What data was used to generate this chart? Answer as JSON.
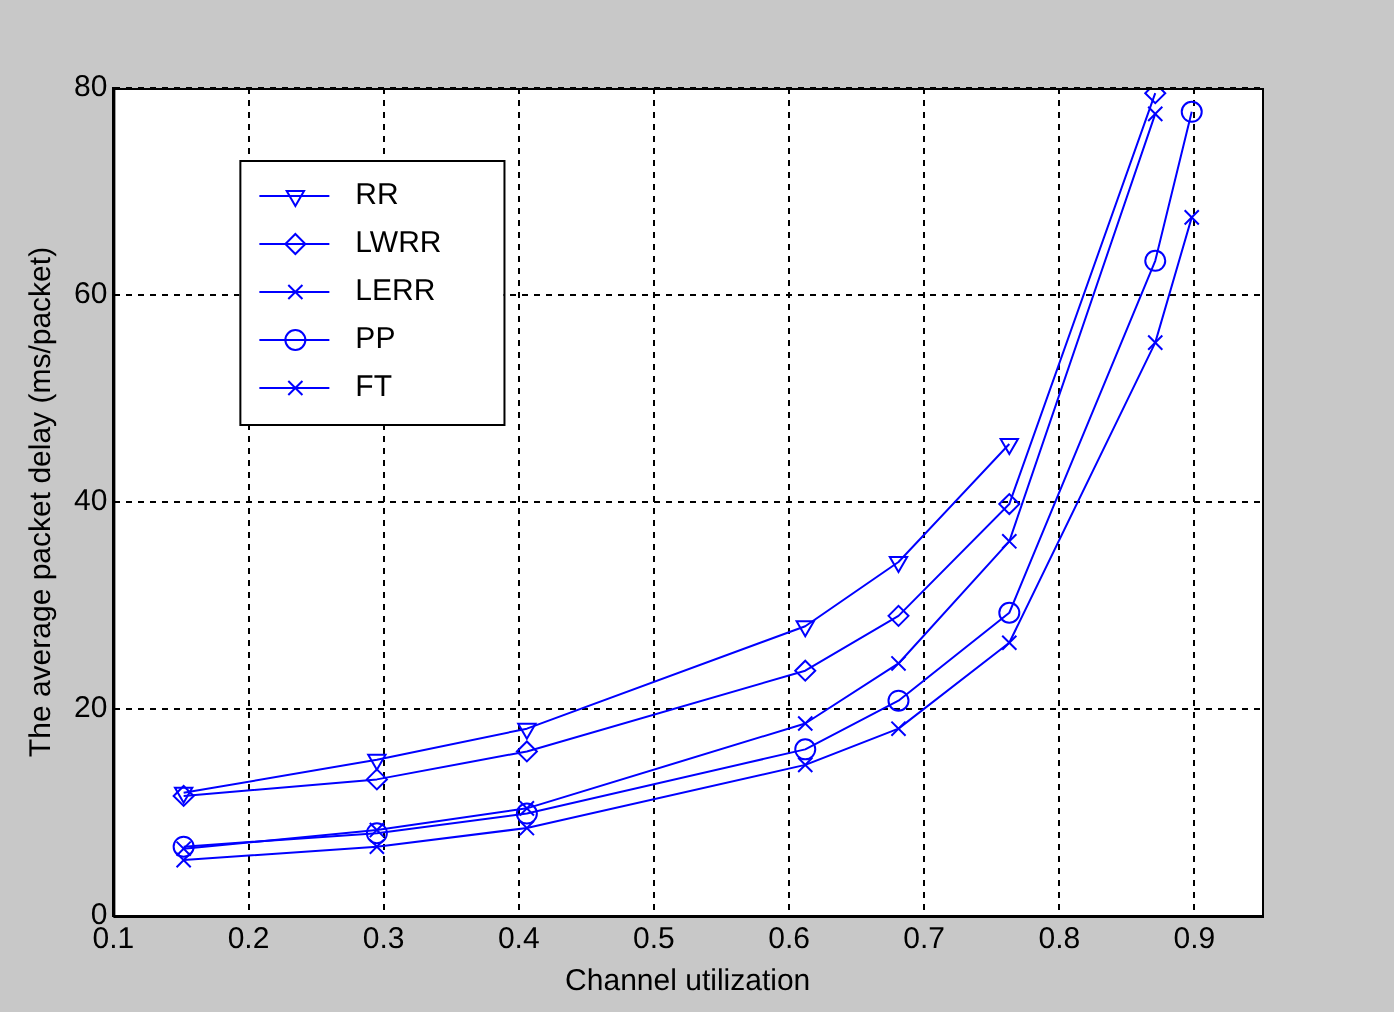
{
  "chart_data": {
    "type": "line",
    "xlabel": "Channel utilization",
    "ylabel": "The average packet delay (ms/packet)",
    "x": [
      0.152,
      0.295,
      0.406,
      0.612,
      0.681,
      0.763,
      0.871,
      0.898
    ],
    "series": [
      {
        "name": "RR",
        "color": "#0000ff",
        "marker": "triangle",
        "values": [
          11.9,
          15.1,
          18.1,
          28.0,
          34.2,
          45.6,
          null,
          null
        ]
      },
      {
        "name": "LWRR",
        "color": "#0000ff",
        "marker": "diamond",
        "values": [
          11.6,
          13.2,
          15.9,
          23.7,
          29.0,
          39.8,
          79.5,
          null
        ]
      },
      {
        "name": "LERR",
        "color": "#0000ff",
        "marker": "cross",
        "values": [
          6.5,
          8.3,
          10.4,
          18.6,
          24.4,
          36.2,
          77.5,
          null
        ]
      },
      {
        "name": "PP",
        "color": "#0000ff",
        "marker": "circle",
        "values": [
          6.7,
          8.0,
          9.9,
          16.1,
          20.8,
          29.3,
          63.3,
          77.7
        ]
      },
      {
        "name": "FT",
        "color": "#0000ff",
        "marker": "cross",
        "values": [
          5.4,
          6.7,
          8.5,
          14.6,
          18.1,
          26.4,
          55.4,
          67.5
        ]
      }
    ],
    "xlim": [
      0.1,
      0.95
    ],
    "xticks": [
      0.1,
      0.2,
      0.3,
      0.4,
      0.5,
      0.6,
      0.7,
      0.8,
      0.9
    ],
    "ylim": [
      0,
      80
    ],
    "yticks": [
      0,
      20,
      40,
      60,
      80
    ],
    "grid": true,
    "legend": "top left",
    "line_style": "solid"
  }
}
